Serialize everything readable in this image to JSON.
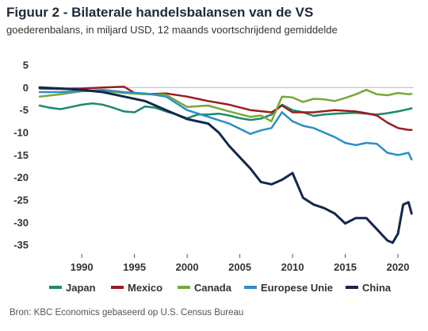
{
  "title": "Figuur 2 - Bilaterale handelsbalansen van de VS",
  "subtitle": "goederenbalans, in miljard USD, 12 maands voortschrijdend gemiddelde",
  "source": "Bron: KBC Economics gebaseerd op U.S. Census Bureau",
  "chart_data": {
    "type": "line",
    "title": "Figuur 2 - Bilaterale handelsbalansen van de VS",
    "subtitle": "goederenbalans, in miljard USD, 12 maands voortschrijdend gemiddelde",
    "xlabel": "",
    "ylabel": "",
    "xlim": [
      1986,
      2021.5
    ],
    "ylim": [
      -37,
      5
    ],
    "xticks": [
      1990,
      1995,
      2000,
      2005,
      2010,
      2015,
      2020
    ],
    "yticks": [
      5,
      0,
      -5,
      -10,
      -15,
      -20,
      -25,
      -30,
      -35
    ],
    "grid": false,
    "legend_position": "bottom",
    "series": [
      {
        "name": "Japan",
        "color": "#1b8a6b",
        "x": [
          1986,
          1987,
          1988,
          1989,
          1990,
          1991,
          1992,
          1993,
          1994,
          1995,
          1996,
          1997,
          1998,
          1999,
          2000,
          2001,
          2002,
          2003,
          2004,
          2005,
          2006,
          2007,
          2008,
          2009,
          2010,
          2011,
          2012,
          2013,
          2014,
          2015,
          2016,
          2017,
          2018,
          2019,
          2020,
          2021,
          2021.3
        ],
        "values": [
          -4,
          -4.5,
          -4.8,
          -4.3,
          -3.8,
          -3.5,
          -3.8,
          -4.5,
          -5.3,
          -5.5,
          -4.2,
          -4.5,
          -5.3,
          -6.0,
          -6.8,
          -6.0,
          -6.0,
          -5.8,
          -6.2,
          -6.8,
          -7.2,
          -6.9,
          -6.0,
          -3.8,
          -5.0,
          -5.5,
          -6.3,
          -6.0,
          -5.8,
          -5.7,
          -5.6,
          -5.8,
          -6.0,
          -5.7,
          -5.3,
          -4.8,
          -4.6
        ]
      },
      {
        "name": "Mexico",
        "color": "#9b1b1f",
        "x": [
          1986,
          1988,
          1990,
          1992,
          1994,
          1995,
          1996,
          1998,
          2000,
          2002,
          2004,
          2006,
          2008,
          2009,
          2010,
          2012,
          2014,
          2016,
          2017,
          2018,
          2019,
          2020,
          2021,
          2021.3
        ],
        "values": [
          -0.2,
          -0.3,
          -0.2,
          0.0,
          0.2,
          -1.2,
          -1.5,
          -1.3,
          -2.0,
          -3.0,
          -3.8,
          -5.0,
          -5.5,
          -4.0,
          -5.5,
          -5.5,
          -5.0,
          -5.3,
          -5.7,
          -6.2,
          -7.8,
          -9.0,
          -9.4,
          -9.4
        ]
      },
      {
        "name": "Canada",
        "color": "#7aa83a",
        "x": [
          1986,
          1988,
          1990,
          1992,
          1994,
          1996,
          1998,
          2000,
          2002,
          2004,
          2006,
          2007,
          2008,
          2009,
          2010,
          2011,
          2012,
          2013,
          2014,
          2015,
          2016,
          2017,
          2018,
          2019,
          2020,
          2021,
          2021.3
        ],
        "values": [
          -2.0,
          -1.5,
          -0.8,
          -0.7,
          -1.2,
          -1.5,
          -1.6,
          -4.3,
          -4.0,
          -5.3,
          -6.5,
          -6.2,
          -7.5,
          -2.0,
          -2.2,
          -3.2,
          -2.5,
          -2.6,
          -3.0,
          -2.3,
          -1.5,
          -0.5,
          -1.5,
          -1.7,
          -1.2,
          -1.5,
          -1.4
        ]
      },
      {
        "name": "Europese Unie",
        "color": "#2a8fc7",
        "x": [
          1986,
          1988,
          1990,
          1992,
          1994,
          1996,
          1998,
          2000,
          2002,
          2004,
          2006,
          2007,
          2008,
          2009,
          2010,
          2011,
          2012,
          2013,
          2014,
          2015,
          2016,
          2017,
          2018,
          2019,
          2020,
          2021,
          2021.3
        ],
        "values": [
          -1.0,
          -1.0,
          -0.8,
          -0.5,
          -1.0,
          -1.3,
          -2.0,
          -5.0,
          -6.5,
          -8.0,
          -10.3,
          -9.5,
          -9.0,
          -5.5,
          -7.5,
          -8.5,
          -9.0,
          -10.0,
          -11.0,
          -12.3,
          -12.8,
          -12.3,
          -12.5,
          -14.5,
          -15.0,
          -14.5,
          -16.0
        ]
      },
      {
        "name": "China",
        "color": "#13294b",
        "x": [
          1986,
          1988,
          1990,
          1992,
          1993,
          1994,
          1996,
          1998,
          2000,
          2002,
          2003,
          2004,
          2005,
          2006,
          2007,
          2008,
          2009,
          2010,
          2011,
          2012,
          2013,
          2014,
          2015,
          2016,
          2017,
          2018,
          2019,
          2019.5,
          2020,
          2020.5,
          2021,
          2021.3
        ],
        "values": [
          0.0,
          -0.2,
          -0.5,
          -1.0,
          -1.5,
          -2.0,
          -3.0,
          -5.0,
          -7.0,
          -8.0,
          -10.0,
          -13.0,
          -15.5,
          -18.0,
          -21.0,
          -21.5,
          -20.5,
          -19.0,
          -24.5,
          -26.0,
          -26.8,
          -28.0,
          -30.2,
          -29.0,
          -29.0,
          -31.5,
          -34.0,
          -34.5,
          -32.5,
          -26.0,
          -25.5,
          -28.0
        ]
      }
    ]
  }
}
